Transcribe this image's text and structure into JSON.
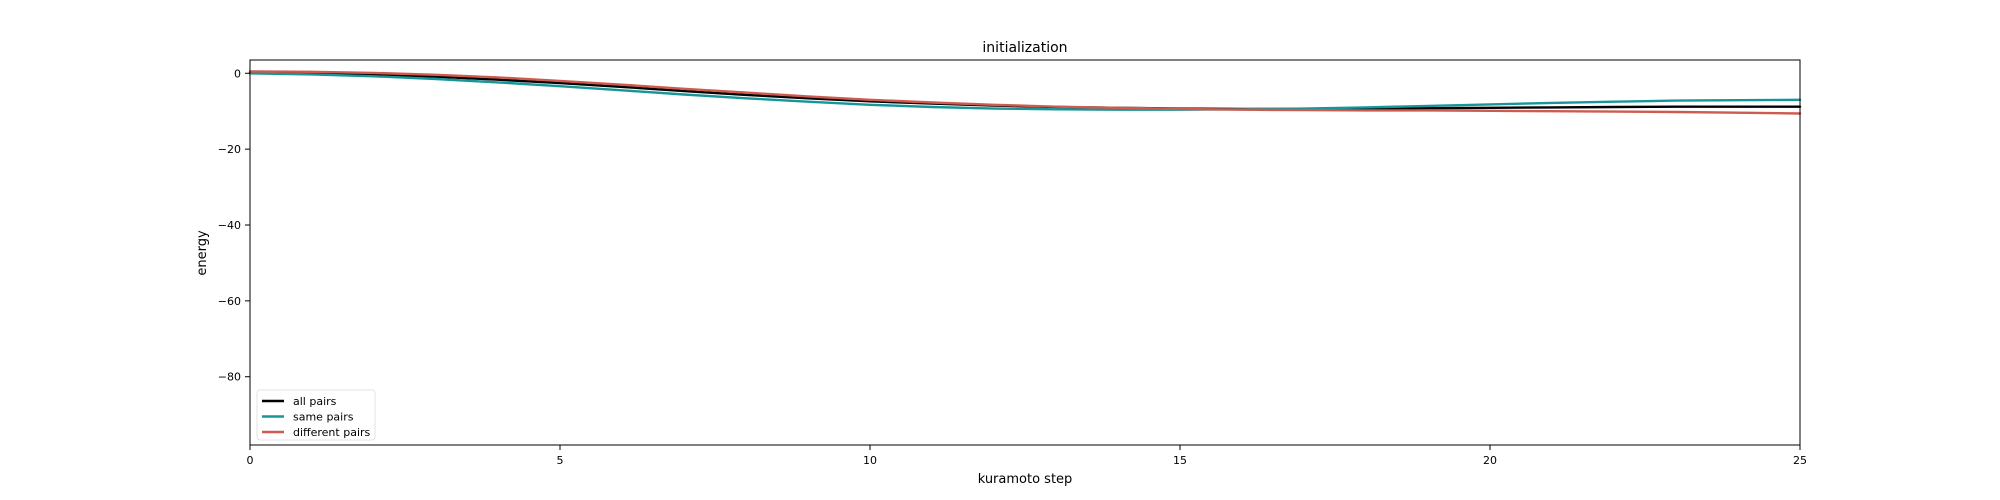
{
  "chart_data": {
    "type": "line",
    "title": "initialization",
    "xlabel": "kuramoto step",
    "ylabel": "energy",
    "xlim": [
      0,
      25
    ],
    "ylim": [
      -98,
      3.5
    ],
    "xticks": [
      0,
      5,
      10,
      15,
      20,
      25
    ],
    "yticks": [
      0,
      -20,
      -40,
      -60,
      -80
    ],
    "ytick_labels": [
      "0",
      "−20",
      "−40",
      "−60",
      "−80"
    ],
    "grid": false,
    "legend_position": "lower-left",
    "x": [
      0,
      1,
      2,
      3,
      4,
      5,
      6,
      7,
      8,
      9,
      10,
      11,
      12,
      13,
      14,
      15,
      16,
      17,
      18,
      19,
      20,
      21,
      22,
      23,
      24,
      25
    ],
    "series": [
      {
        "name": "all pairs",
        "color": "#000000",
        "values": [
          0.2,
          0.1,
          -0.3,
          -0.9,
          -1.7,
          -2.6,
          -3.6,
          -4.7,
          -5.7,
          -6.6,
          -7.4,
          -8.0,
          -8.5,
          -8.9,
          -9.1,
          -9.3,
          -9.4,
          -9.4,
          -9.3,
          -9.2,
          -9.1,
          -9.0,
          -8.9,
          -8.8,
          -8.8,
          -8.8
        ]
      },
      {
        "name": "same pairs",
        "color": "#17969a",
        "values": [
          0.0,
          -0.3,
          -0.8,
          -1.5,
          -2.4,
          -3.4,
          -4.5,
          -5.6,
          -6.6,
          -7.5,
          -8.3,
          -8.9,
          -9.3,
          -9.5,
          -9.6,
          -9.6,
          -9.5,
          -9.3,
          -9.0,
          -8.6,
          -8.2,
          -7.8,
          -7.5,
          -7.2,
          -7.1,
          -7.0
        ]
      },
      {
        "name": "different pairs",
        "color": "#cd5b4f",
        "values": [
          0.5,
          0.4,
          0.1,
          -0.4,
          -1.1,
          -2.0,
          -3.0,
          -4.1,
          -5.1,
          -6.1,
          -7.0,
          -7.7,
          -8.3,
          -8.8,
          -9.1,
          -9.4,
          -9.6,
          -9.7,
          -9.8,
          -9.8,
          -9.9,
          -10.0,
          -10.1,
          -10.2,
          -10.4,
          -10.6
        ]
      }
    ]
  }
}
